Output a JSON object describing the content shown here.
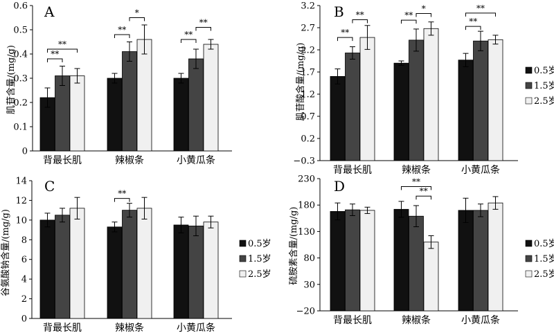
{
  "legend": {
    "series": [
      {
        "name": "0.5岁",
        "color": "#111111"
      },
      {
        "name": "1.5岁",
        "color": "#444444"
      },
      {
        "name": "2.5岁",
        "color": "#f0f0f0"
      }
    ]
  },
  "chart_data": [
    {
      "type": "bar",
      "panel": "A",
      "title": "",
      "ylabel": "肌苷含量/(mg/g)",
      "xlabel": "",
      "categories": [
        "背最长肌",
        "辣椒条",
        "小黄瓜条"
      ],
      "ylim": [
        0,
        0.6
      ],
      "yticks": [
        "0",
        "0.1",
        "0.2",
        "0.3",
        "0.4",
        "0.5",
        "0.6"
      ],
      "series": [
        {
          "name": "0.5岁",
          "values": [
            0.22,
            0.3,
            0.3
          ],
          "errors": [
            0.04,
            0.02,
            0.02
          ]
        },
        {
          "name": "1.5岁",
          "values": [
            0.31,
            0.41,
            0.38
          ],
          "errors": [
            0.04,
            0.04,
            0.04
          ]
        },
        {
          "name": "2.5岁",
          "values": [
            0.31,
            0.46,
            0.44
          ],
          "errors": [
            0.03,
            0.06,
            0.02
          ]
        }
      ],
      "significance": [
        {
          "category": 0,
          "from": 0,
          "to": 1,
          "label": "**",
          "y": 0.38
        },
        {
          "category": 0,
          "from": 0,
          "to": 2,
          "label": "**",
          "y": 0.42
        },
        {
          "category": 1,
          "from": 0,
          "to": 1,
          "label": "**",
          "y": 0.48
        },
        {
          "category": 1,
          "from": 1,
          "to": 2,
          "label": "*",
          "y": 0.55
        },
        {
          "category": 2,
          "from": 0,
          "to": 1,
          "label": "**",
          "y": 0.46
        },
        {
          "category": 2,
          "from": 1,
          "to": 2,
          "label": "**",
          "y": 0.51
        }
      ]
    },
    {
      "type": "bar",
      "panel": "B",
      "title": "",
      "ylabel": "肌苷酸含量/(mg/g)",
      "xlabel": "",
      "categories": [
        "背最长肌",
        "辣椒条",
        "小黄瓜条"
      ],
      "ylim": [
        -0.3,
        3.2
      ],
      "yticks": [
        "−0.3",
        "0.2",
        "0.7",
        "1.2",
        "1.7",
        "2.2",
        "2.7",
        "3.2"
      ],
      "series": [
        {
          "name": "0.5岁",
          "values": [
            1.6,
            1.9,
            1.97
          ],
          "errors": [
            0.17,
            0.05,
            0.15
          ]
        },
        {
          "name": "1.5岁",
          "values": [
            2.13,
            2.42,
            2.4
          ],
          "errors": [
            0.14,
            0.25,
            0.22
          ]
        },
        {
          "name": "2.5岁",
          "values": [
            2.48,
            2.68,
            2.43
          ],
          "errors": [
            0.27,
            0.15,
            0.1
          ]
        }
      ],
      "significance": [
        {
          "category": 0,
          "from": 0,
          "to": 1,
          "label": "**",
          "y": 2.48
        },
        {
          "category": 0,
          "from": 1,
          "to": 2,
          "label": "**",
          "y": 2.88
        },
        {
          "category": 1,
          "from": 0,
          "to": 1,
          "label": "**",
          "y": 2.87
        },
        {
          "category": 1,
          "from": 1,
          "to": 2,
          "label": "*",
          "y": 3.02
        },
        {
          "category": 2,
          "from": 0,
          "to": 1,
          "label": "**",
          "y": 2.73
        },
        {
          "category": 2,
          "from": 0,
          "to": 2,
          "label": "**",
          "y": 3.03
        }
      ]
    },
    {
      "type": "bar",
      "panel": "C",
      "title": "",
      "ylabel": "谷氨酸钠含量/(mg/g)",
      "xlabel": "",
      "categories": [
        "背最长肌",
        "辣椒条",
        "小黄瓜条"
      ],
      "ylim": [
        0,
        14
      ],
      "yticks": [
        "0",
        "2",
        "4",
        "6",
        "8",
        "10",
        "12",
        "14"
      ],
      "series": [
        {
          "name": "0.5岁",
          "values": [
            10.0,
            9.3,
            9.5
          ],
          "errors": [
            0.7,
            0.5,
            0.8
          ]
        },
        {
          "name": "1.5岁",
          "values": [
            10.5,
            11.0,
            9.4
          ],
          "errors": [
            0.7,
            0.7,
            1.0
          ]
        },
        {
          "name": "2.5岁",
          "values": [
            11.2,
            11.2,
            9.8
          ],
          "errors": [
            1.1,
            1.1,
            0.6
          ]
        }
      ],
      "significance": [
        {
          "category": 1,
          "from": 0,
          "to": 1,
          "label": "**",
          "y": 12.2
        }
      ]
    },
    {
      "type": "bar",
      "panel": "D",
      "title": "",
      "ylabel": "硫胺素含量/(mg/g)",
      "xlabel": "",
      "categories": [
        "背最长肌",
        "辣椒条",
        "小黄瓜条"
      ],
      "ylim": [
        -20,
        230
      ],
      "yticks": [
        "−20",
        "30",
        "80",
        "130",
        "180",
        "230"
      ],
      "series": [
        {
          "name": "0.5岁",
          "values": [
            168,
            172,
            170
          ],
          "errors": [
            16,
            15,
            23
          ]
        },
        {
          "name": "1.5岁",
          "values": [
            171,
            159,
            170
          ],
          "errors": [
            11,
            20,
            12
          ]
        },
        {
          "name": "2.5岁",
          "values": [
            170,
            110,
            184
          ],
          "errors": [
            6,
            12,
            12
          ]
        }
      ],
      "significance": [
        {
          "category": 1,
          "from": 0,
          "to": 2,
          "label": "**",
          "y": 215
        },
        {
          "category": 1,
          "from": 1,
          "to": 2,
          "label": "**",
          "y": 197
        }
      ]
    }
  ]
}
